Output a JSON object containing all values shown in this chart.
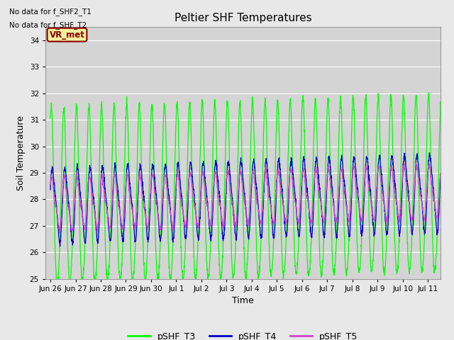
{
  "title": "Peltier SHF Temperatures",
  "xlabel": "Time",
  "ylabel": "Soil Temperature",
  "ylim": [
    25.0,
    34.5
  ],
  "yticks": [
    25.0,
    26.0,
    27.0,
    28.0,
    29.0,
    30.0,
    31.0,
    32.0,
    33.0,
    34.0
  ],
  "no_data_text": [
    "No data for f_SHF2_T1",
    "No data for f_SHF_T2"
  ],
  "vr_met_label": "VR_met",
  "legend_entries": [
    "pSHF_T3",
    "pSHF_T4",
    "pSHF_T5"
  ],
  "legend_colors": [
    "#00ff00",
    "#0000cd",
    "#cc44cc"
  ],
  "line_colors": [
    "#00ff00",
    "#0000cd",
    "#cc44cc"
  ],
  "bg_color": "#e8e8e8",
  "plot_bg_color": "#d4d4d4",
  "xtick_labels": [
    "Jun 26",
    "Jun 27",
    "Jun 28",
    "Jun 29",
    "Jun 30",
    "Jul 1",
    "Jul 2",
    "Jul 3",
    "Jul 4",
    "Jul 5",
    "Jul 6",
    "Jul 7",
    "Jul 8",
    "Jul 9",
    "Jul 10",
    "Jul 11"
  ],
  "xtick_positions": [
    0,
    1,
    2,
    3,
    4,
    5,
    6,
    7,
    8,
    9,
    10,
    11,
    12,
    13,
    14,
    15
  ],
  "figsize": [
    6.4,
    4.8
  ],
  "dpi": 100
}
